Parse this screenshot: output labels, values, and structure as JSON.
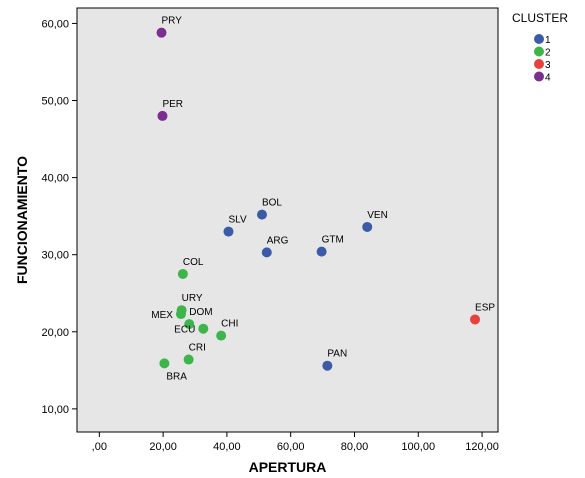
{
  "chart_data": {
    "type": "scatter",
    "title": "",
    "xlabel": "APERTURA",
    "ylabel": "FUNCIONAMIENTO",
    "xlim": [
      -7,
      125
    ],
    "ylim": [
      7,
      62
    ],
    "x_ticks": [
      0,
      20,
      40,
      60,
      80,
      100,
      120
    ],
    "x_tick_labels": [
      ",00",
      "20,00",
      "40,00",
      "60,00",
      "80,00",
      "100,00",
      "120,00"
    ],
    "y_ticks": [
      10,
      20,
      30,
      40,
      50,
      60
    ],
    "y_tick_labels": [
      "10,00",
      "20,00",
      "30,00",
      "40,00",
      "50,00",
      "60,00"
    ],
    "grid": false,
    "background": "#e6e6e6",
    "legend": {
      "title": "CLUSTER",
      "position": "right",
      "items": [
        {
          "label": "1",
          "color": "#3b5ba8"
        },
        {
          "label": "2",
          "color": "#3db54a"
        },
        {
          "label": "3",
          "color": "#e8413c"
        },
        {
          "label": "4",
          "color": "#7b2f8e"
        }
      ]
    },
    "points": [
      {
        "label": "PRY",
        "x": 19.5,
        "y": 58.8,
        "cluster": 4,
        "label_pos": "above"
      },
      {
        "label": "PER",
        "x": 19.8,
        "y": 48.0,
        "cluster": 4,
        "label_pos": "above"
      },
      {
        "label": "BOL",
        "x": 51.0,
        "y": 35.2,
        "cluster": 1,
        "label_pos": "above"
      },
      {
        "label": "SLV",
        "x": 40.5,
        "y": 33.0,
        "cluster": 1,
        "label_pos": "above"
      },
      {
        "label": "VEN",
        "x": 84.0,
        "y": 33.6,
        "cluster": 1,
        "label_pos": "above"
      },
      {
        "label": "ARG",
        "x": 52.5,
        "y": 30.3,
        "cluster": 1,
        "label_pos": "above"
      },
      {
        "label": "GTM",
        "x": 69.7,
        "y": 30.4,
        "cluster": 1,
        "label_pos": "above"
      },
      {
        "label": "COL",
        "x": 26.2,
        "y": 27.5,
        "cluster": 2,
        "label_pos": "above"
      },
      {
        "label": "URY",
        "x": 25.8,
        "y": 22.8,
        "cluster": 2,
        "label_pos": "above"
      },
      {
        "label": "MEX",
        "x": 25.6,
        "y": 22.3,
        "cluster": 2,
        "label_pos": "left"
      },
      {
        "label": "DOM",
        "x": 28.2,
        "y": 21.0,
        "cluster": 2,
        "label_pos": "above"
      },
      {
        "label": "ECU",
        "x": 32.6,
        "y": 20.4,
        "cluster": 2,
        "label_pos": "left"
      },
      {
        "label": "CHI",
        "x": 38.2,
        "y": 19.5,
        "cluster": 2,
        "label_pos": "above"
      },
      {
        "label": "CRI",
        "x": 28.0,
        "y": 16.4,
        "cluster": 2,
        "label_pos": "above"
      },
      {
        "label": "BRA",
        "x": 20.4,
        "y": 15.9,
        "cluster": 2,
        "label_pos": "below"
      },
      {
        "label": "ESP",
        "x": 117.8,
        "y": 21.6,
        "cluster": 3,
        "label_pos": "above"
      },
      {
        "label": "PAN",
        "x": 71.5,
        "y": 15.6,
        "cluster": 1,
        "label_pos": "above"
      }
    ]
  }
}
